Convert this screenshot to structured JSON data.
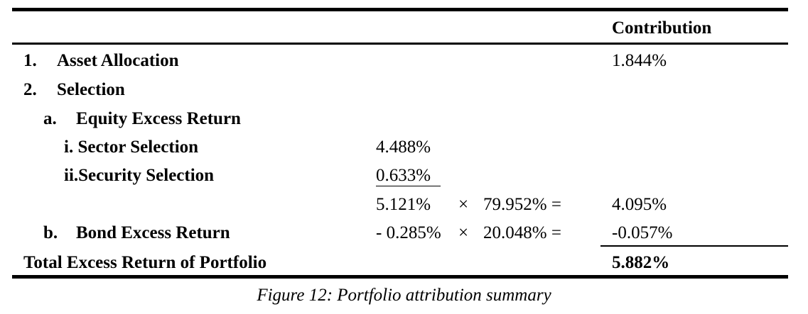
{
  "table": {
    "header": {
      "contribution": "Contribution"
    },
    "rows": {
      "asset_allocation": {
        "number": "1.",
        "label": "Asset Allocation",
        "contribution": "1.844%"
      },
      "selection": {
        "number": "2.",
        "label": "Selection"
      },
      "equity_excess": {
        "letter": "a.",
        "label": "Equity Excess Return"
      },
      "sector_selection": {
        "label": "i. Sector Selection",
        "value": "4.488%"
      },
      "security_selection": {
        "label": "ii.Security Selection",
        "value": "0.633%"
      },
      "equity_calc": {
        "sum": "5.121%",
        "times": "×",
        "weight": "79.952% =",
        "contribution": "4.095%"
      },
      "bond_excess": {
        "letter": "b.",
        "label": "Bond Excess Return",
        "value": "- 0.285%",
        "times": "×",
        "weight": "20.048% =",
        "contribution": "-0.057%"
      },
      "total": {
        "label": "Total Excess Return of Portfolio",
        "contribution": "5.882%"
      }
    }
  },
  "caption": "Figure 12: Portfolio attribution summary"
}
